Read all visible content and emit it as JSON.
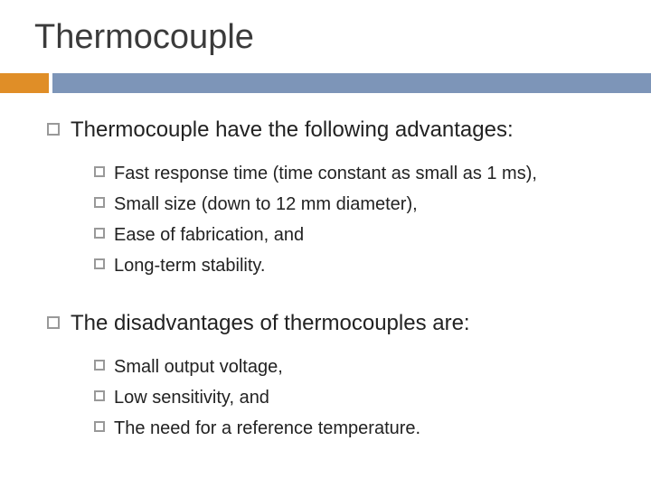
{
  "title": "Thermocouple",
  "accent": {
    "orange": "#e08e27",
    "blue": "#7d95b8"
  },
  "text_color": "#222222",
  "title_color": "#3b3b3b",
  "background_color": "#ffffff",
  "title_fontsize": 38,
  "lvl1_fontsize": 24,
  "lvl2_fontsize": 20,
  "sections": [
    {
      "heading": "Thermocouple have the following advantages:",
      "items": [
        "Fast response time (time constant as small as 1 ms),",
        "Small size (down to 12 mm diameter),",
        "Ease of fabrication, and",
        "Long-term stability."
      ]
    },
    {
      "heading": "The disadvantages of thermocouples are:",
      "items": [
        "Small output voltage,",
        "Low sensitivity, and",
        "The need for a reference temperature."
      ]
    }
  ]
}
